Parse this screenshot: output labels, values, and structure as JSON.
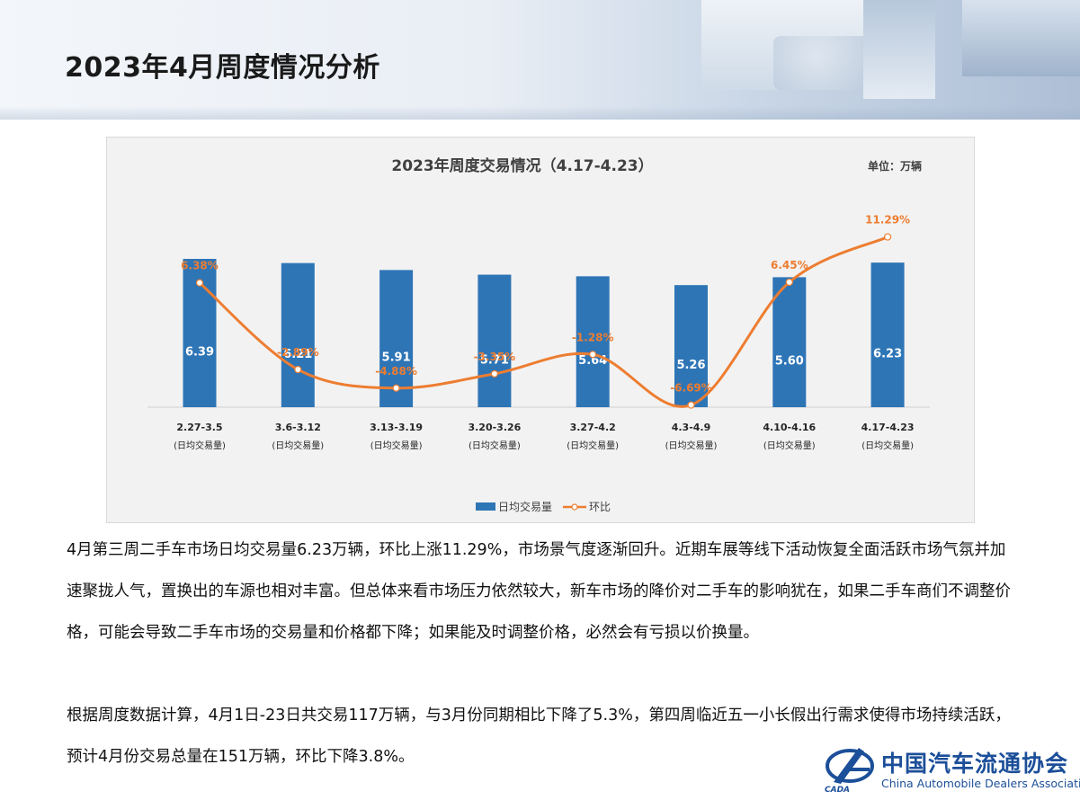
{
  "page": {
    "title": "2023年4月周度情况分析"
  },
  "chart_data": {
    "type": "bar",
    "title": "2023年周度交易情况（4.17-4.23）",
    "unit": "单位：万辆",
    "categories": [
      "2.27-3.5",
      "3.6-3.12",
      "3.13-3.19",
      "3.20-3.26",
      "3.27-4.2",
      "4.3-4.9",
      "4.10-4.16",
      "4.17-4.23"
    ],
    "category_sublabel": "(日均交易量)",
    "series": [
      {
        "name": "日均交易量",
        "type": "bar",
        "color": "#2e75b6",
        "values": [
          6.39,
          6.21,
          5.91,
          5.71,
          5.64,
          5.26,
          5.6,
          6.23
        ],
        "labels": [
          "6.39",
          "6.21",
          "5.91",
          "5.71",
          "5.64",
          "5.26",
          "5.60",
          "6.23"
        ]
      },
      {
        "name": "环比",
        "type": "line",
        "color": "#ed7d31",
        "values": [
          6.38,
          -2.89,
          -4.88,
          -3.35,
          -1.28,
          -6.69,
          6.45,
          11.29
        ],
        "labels": [
          "6.38%",
          "-2.89%",
          "-4.88%",
          "-3.35%",
          "-1.28%",
          "-6.69%",
          "6.45%",
          "11.29%"
        ]
      }
    ],
    "legend_position": "bottom",
    "grid": false
  },
  "paragraphs": [
    "4月第三周二手车市场日均交易量6.23万辆，环比上涨11.29%，市场景气度逐渐回升。近期车展等线下活动恢复全面活跃市场气氛并加速聚拢人气，置换出的车源也相对丰富。但总体来看市场压力依然较大，新车市场的降价对二手车的影响犹在，如果二手车商们不调整价格，可能会导致二手车市场的交易量和价格都下降；如果能及时调整价格，必然会有亏损以价换量。",
    "根据周度数据计算，4月1日-23日共交易117万辆，与3月份同期相比下降了5.3%，第四周临近五一小长假出行需求使得市场持续活跃，预计4月份交易总量在151万辆，环比下降3.8%。"
  ],
  "logo": {
    "name_cn": "中国汽车流通协会",
    "name_en": "China Automobile Dealers Association",
    "abbr": "CADA"
  }
}
